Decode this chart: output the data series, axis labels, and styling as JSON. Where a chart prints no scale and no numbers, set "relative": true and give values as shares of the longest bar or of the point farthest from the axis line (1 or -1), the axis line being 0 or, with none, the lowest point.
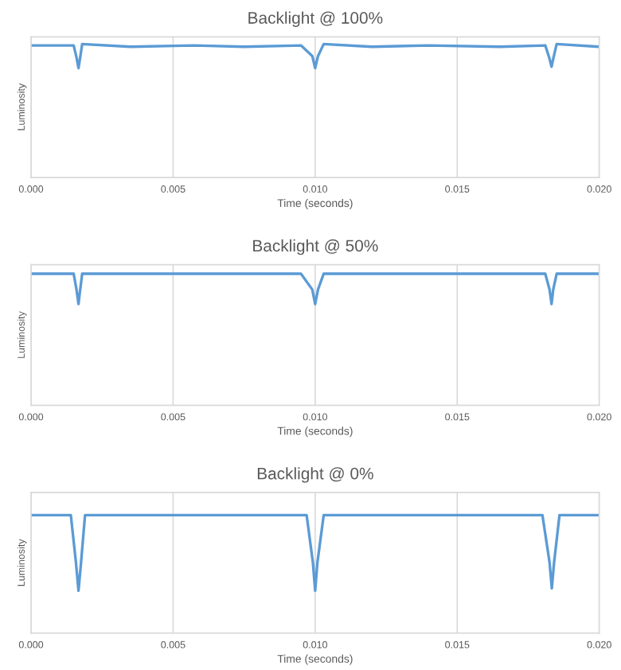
{
  "chart_data": [
    {
      "type": "line",
      "title": "Backlight @ 100%",
      "xlabel": "Time (seconds)",
      "ylabel": "Luminosity",
      "relative": true,
      "grid": "x",
      "tick_labels": "x",
      "xlim": [
        0,
        0.02
      ],
      "xticks": [
        {
          "value": 0,
          "label": "0.000"
        },
        {
          "value": 0.005,
          "label": "0.005"
        },
        {
          "value": 0.01,
          "label": "0.010"
        },
        {
          "value": 0.015,
          "label": "0.015"
        },
        {
          "value": 0.02,
          "label": "0.020"
        }
      ],
      "series": [
        {
          "color": "#5b9bd5",
          "x": [
            0,
            0.0015,
            0.0016,
            0.00167,
            0.00173,
            0.0018,
            0.0035,
            0.0057,
            0.0075,
            0.0095,
            0.0099,
            0.01,
            0.0101,
            0.0103,
            0.012,
            0.014,
            0.0165,
            0.0181,
            0.01825,
            0.01832,
            0.01838,
            0.0185,
            0.02
          ],
          "values": [
            0.99,
            0.99,
            0.9,
            0.82,
            0.9,
            1,
            0.98,
            0.99,
            0.98,
            0.99,
            0.91,
            0.82,
            0.91,
            1,
            0.98,
            0.99,
            0.98,
            0.99,
            0.89,
            0.83,
            0.89,
            1,
            0.98
          ]
        }
      ]
    },
    {
      "type": "line",
      "title": "Backlight @ 50%",
      "xlabel": "Time (seconds)",
      "ylabel": "Luminosity",
      "relative": true,
      "grid": "x",
      "tick_labels": "x",
      "xlim": [
        0,
        0.02
      ],
      "xticks": [
        {
          "value": 0,
          "label": "0.000"
        },
        {
          "value": 0.005,
          "label": "0.005"
        },
        {
          "value": 0.01,
          "label": "0.010"
        },
        {
          "value": 0.015,
          "label": "0.015"
        },
        {
          "value": 0.02,
          "label": "0.020"
        }
      ],
      "series": [
        {
          "color": "#5b9bd5",
          "x": [
            0,
            0.0015,
            0.0016,
            0.00167,
            0.00173,
            0.0018,
            0.006,
            0.0095,
            0.0099,
            0.01,
            0.0101,
            0.0103,
            0.014,
            0.0181,
            0.01825,
            0.01832,
            0.01838,
            0.0185,
            0.02
          ],
          "values": [
            1,
            1,
            0.88,
            0.77,
            0.88,
            1,
            1,
            1,
            0.88,
            0.77,
            0.88,
            1,
            1,
            1,
            0.88,
            0.77,
            0.88,
            1,
            1
          ]
        }
      ]
    },
    {
      "type": "line",
      "title": "Backlight @ 0%",
      "xlabel": "Time (seconds)",
      "ylabel": "Luminosity",
      "relative": true,
      "grid": "x",
      "tick_labels": "x",
      "xlim": [
        0,
        0.02
      ],
      "xticks": [
        {
          "value": 0,
          "label": "0.000"
        },
        {
          "value": 0.005,
          "label": "0.005"
        },
        {
          "value": 0.01,
          "label": "0.010"
        },
        {
          "value": 0.015,
          "label": "0.015"
        },
        {
          "value": 0.02,
          "label": "0.020"
        }
      ],
      "series": [
        {
          "color": "#5b9bd5",
          "x": [
            0,
            0.0014,
            0.00158,
            0.00167,
            0.00176,
            0.0019,
            0.0097,
            0.00992,
            0.01,
            0.01008,
            0.0103,
            0.018,
            0.01825,
            0.01833,
            0.01841,
            0.0186,
            0.02
          ],
          "values": [
            1,
            1,
            0.6,
            0.36,
            0.6,
            1,
            1,
            0.6,
            0.36,
            0.6,
            1,
            1,
            0.6,
            0.38,
            0.6,
            1,
            1
          ]
        }
      ]
    }
  ]
}
